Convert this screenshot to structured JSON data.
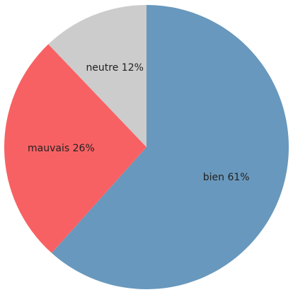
{
  "chart_data": {
    "type": "pie",
    "start_angle_deg": 0,
    "direction": "clockwise",
    "slices": [
      {
        "name": "bien",
        "percent": 61,
        "label": "bien 61%",
        "color": "#6898BD"
      },
      {
        "name": "mauvais",
        "percent": 26,
        "label": "mauvais 26%",
        "color": "#F86163"
      },
      {
        "name": "neutre",
        "percent": 12,
        "label": "neutre 12%",
        "color": "#CCCCCC"
      }
    ]
  }
}
